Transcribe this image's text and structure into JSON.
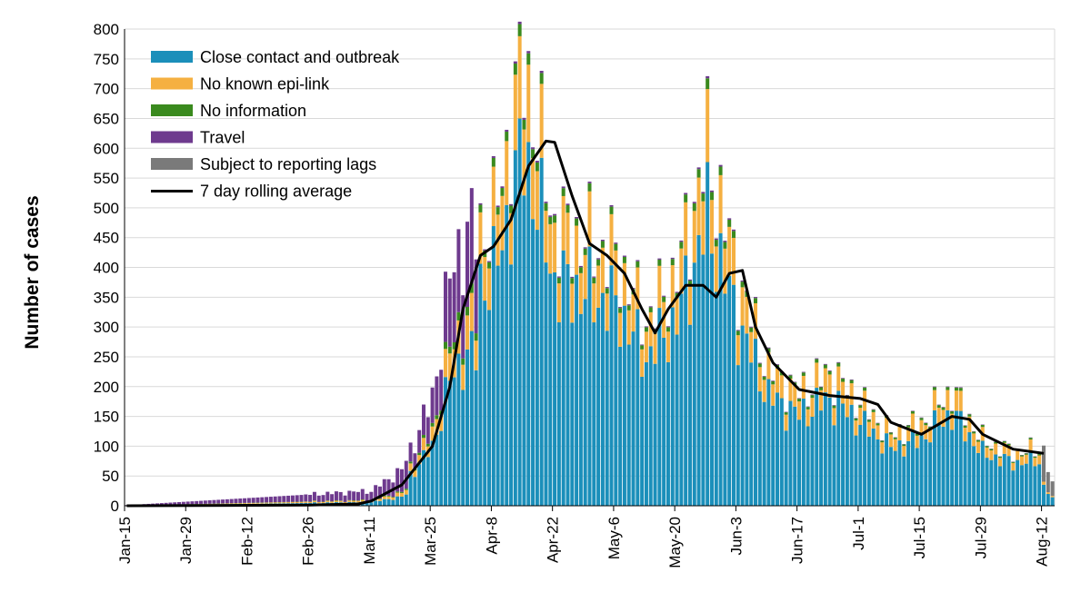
{
  "chart_data": {
    "type": "bar",
    "stacked": true,
    "title": "",
    "xlabel": "",
    "ylabel": "Number of cases",
    "ylim": [
      0,
      800
    ],
    "yticks": [
      "0",
      "50",
      "100",
      "150",
      "200",
      "250",
      "300",
      "350",
      "400",
      "450",
      "500",
      "550",
      "600",
      "650",
      "700",
      "750",
      "800"
    ],
    "grid": "horizontal",
    "legend_position": "top-left",
    "x_start_date": "Jan-15",
    "x_tick_labels": [
      "Jan-15",
      "Jan-29",
      "Feb-12",
      "Feb-26",
      "Mar-11",
      "Mar-25",
      "Apr-8",
      "Apr-22",
      "May-6",
      "May-20",
      "Jun-3",
      "Jun-17",
      "Jul-1",
      "Jul-15",
      "Jul-29",
      "Aug-12"
    ],
    "series": [
      {
        "name": "Close contact and outbreak",
        "color": "#1b8fba"
      },
      {
        "name": "No known epi-link",
        "color": "#f5b041"
      },
      {
        "name": "No information",
        "color": "#3a8a1e"
      },
      {
        "name": "Travel",
        "color": "#6e3a8e"
      },
      {
        "name": "Subject to reporting lags",
        "color": "#7a7a7a"
      }
    ],
    "line_series": {
      "name": "7 day rolling average",
      "color": "#000000"
    },
    "daily_totals": [
      {
        "date": "Jan-15",
        "value": 1
      },
      {
        "date": "Mar-11",
        "value": 25
      },
      {
        "date": "Mar-18",
        "value": 60
      },
      {
        "date": "Mar-25",
        "value": 180
      },
      {
        "date": "Mar-29",
        "value": 380
      },
      {
        "date": "Apr-1",
        "value": 450
      },
      {
        "date": "Apr-8",
        "value": 480
      },
      {
        "date": "Apr-15",
        "value": 750
      },
      {
        "date": "Apr-22",
        "value": 470
      },
      {
        "date": "May-6",
        "value": 420
      },
      {
        "date": "May-13",
        "value": 310
      },
      {
        "date": "May-20",
        "value": 390
      },
      {
        "date": "May-27",
        "value": 600
      },
      {
        "date": "Jun-3",
        "value": 385
      },
      {
        "date": "Jun-10",
        "value": 230
      },
      {
        "date": "Jun-17",
        "value": 190
      },
      {
        "date": "Jun-24",
        "value": 225
      },
      {
        "date": "Jul-1",
        "value": 175
      },
      {
        "date": "Jul-8",
        "value": 120
      },
      {
        "date": "Jul-15",
        "value": 140
      },
      {
        "date": "Jul-22",
        "value": 195
      },
      {
        "date": "Jul-29",
        "value": 110
      },
      {
        "date": "Aug-5",
        "value": 90
      },
      {
        "date": "Aug-12",
        "value": 95
      },
      {
        "date": "Aug-14",
        "value": 35
      }
    ],
    "rolling_average": [
      {
        "date": "Jan-15",
        "value": 0
      },
      {
        "date": "Feb-26",
        "value": 1
      },
      {
        "date": "Mar-8",
        "value": 3
      },
      {
        "date": "Mar-11",
        "value": 8
      },
      {
        "date": "Mar-18",
        "value": 35
      },
      {
        "date": "Mar-25",
        "value": 100
      },
      {
        "date": "Mar-29",
        "value": 200
      },
      {
        "date": "Apr-1",
        "value": 330
      },
      {
        "date": "Apr-5",
        "value": 420
      },
      {
        "date": "Apr-8",
        "value": 435
      },
      {
        "date": "Apr-12",
        "value": 480
      },
      {
        "date": "Apr-16",
        "value": 570
      },
      {
        "date": "Apr-20",
        "value": 612
      },
      {
        "date": "Apr-22",
        "value": 610
      },
      {
        "date": "Apr-26",
        "value": 520
      },
      {
        "date": "Apr-30",
        "value": 440
      },
      {
        "date": "May-4",
        "value": 420
      },
      {
        "date": "May-8",
        "value": 390
      },
      {
        "date": "May-12",
        "value": 330
      },
      {
        "date": "May-15",
        "value": 290
      },
      {
        "date": "May-18",
        "value": 330
      },
      {
        "date": "May-22",
        "value": 370
      },
      {
        "date": "May-26",
        "value": 370
      },
      {
        "date": "May-29",
        "value": 350
      },
      {
        "date": "Jun-1",
        "value": 390
      },
      {
        "date": "Jun-4",
        "value": 395
      },
      {
        "date": "Jun-7",
        "value": 300
      },
      {
        "date": "Jun-11",
        "value": 240
      },
      {
        "date": "Jun-17",
        "value": 195
      },
      {
        "date": "Jun-24",
        "value": 185
      },
      {
        "date": "Jul-1",
        "value": 180
      },
      {
        "date": "Jul-5",
        "value": 170
      },
      {
        "date": "Jul-8",
        "value": 140
      },
      {
        "date": "Jul-15",
        "value": 120
      },
      {
        "date": "Jul-22",
        "value": 150
      },
      {
        "date": "Jul-26",
        "value": 145
      },
      {
        "date": "Jul-29",
        "value": 120
      },
      {
        "date": "Aug-5",
        "value": 95
      },
      {
        "date": "Aug-12",
        "value": 88
      }
    ]
  }
}
